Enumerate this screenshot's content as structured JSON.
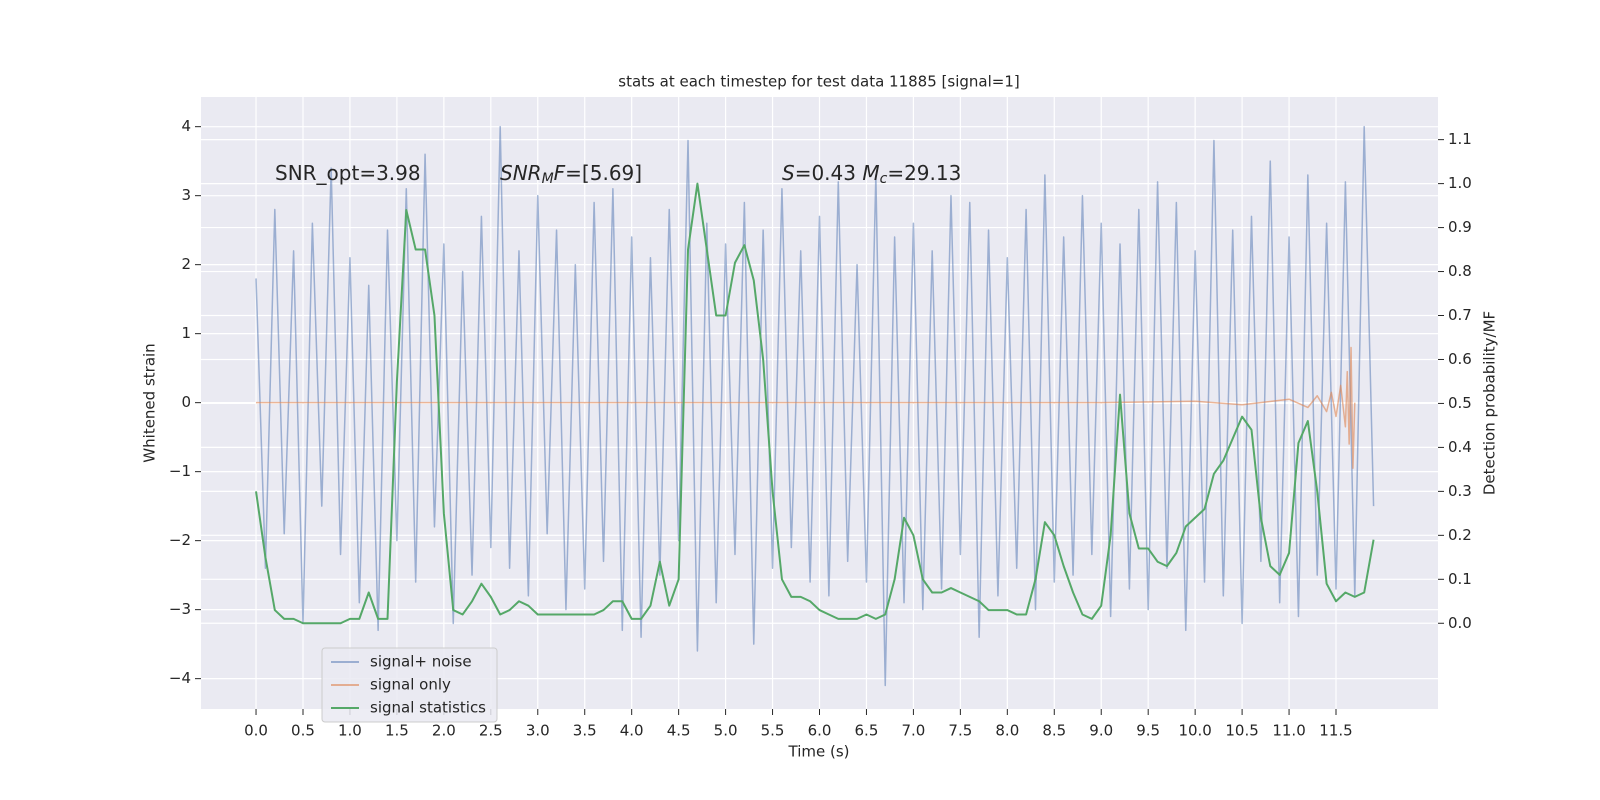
{
  "chart_data": {
    "type": "line",
    "title": "stats at each timestep for test data 11885 [signal=1]",
    "xlabel": "Time (s)",
    "ylabel": "Whitened strain",
    "y2label": "Detection probability/MF",
    "x": [
      0,
      0.1,
      0.2,
      0.3,
      0.4,
      0.5,
      0.6,
      0.7,
      0.8,
      0.9,
      1,
      1.1,
      1.2,
      1.3,
      1.4,
      1.5,
      1.6,
      1.7,
      1.8,
      1.9,
      2,
      2.1,
      2.2,
      2.3,
      2.4,
      2.5,
      2.6,
      2.7,
      2.8,
      2.9,
      3,
      3.1,
      3.2,
      3.3,
      3.4,
      3.5,
      3.6,
      3.7,
      3.8,
      3.9,
      4,
      4.1,
      4.2,
      4.3,
      4.4,
      4.5,
      4.6,
      4.7,
      4.8,
      4.9,
      5,
      5.1,
      5.2,
      5.3,
      5.4,
      5.5,
      5.6,
      5.7,
      5.8,
      5.9,
      6,
      6.1,
      6.2,
      6.3,
      6.4,
      6.5,
      6.6,
      6.7,
      6.8,
      6.9,
      7,
      7.1,
      7.2,
      7.3,
      7.4,
      7.5,
      7.6,
      7.7,
      7.8,
      7.9,
      8,
      8.1,
      8.2,
      8.3,
      8.4,
      8.5,
      8.6,
      8.7,
      8.8,
      8.9,
      9,
      9.1,
      9.2,
      9.3,
      9.4,
      9.5,
      9.6,
      9.7,
      9.8,
      9.9,
      10,
      10.1,
      10.2,
      10.3,
      10.4,
      10.5,
      10.6,
      10.7,
      10.8,
      10.9,
      11,
      11.1,
      11.2,
      11.3,
      11.4,
      11.5,
      11.6,
      11.7,
      11.8,
      11.9
    ],
    "series": [
      {
        "name": "signal+ noise",
        "color": "#4c72b0",
        "opacity": 0.5,
        "values": [
          1.8,
          -2.4,
          2.8,
          -1.9,
          2.2,
          -3.2,
          2.6,
          -1.5,
          3.4,
          -2.2,
          2.1,
          -2.9,
          1.7,
          -3.3,
          2.5,
          -2.0,
          3.1,
          -2.6,
          3.6,
          -1.8,
          2.3,
          -3.2,
          1.9,
          -2.5,
          2.7,
          -2.1,
          4.0,
          -2.4,
          2.2,
          -2.8,
          3.0,
          -1.9,
          2.5,
          -3.0,
          2.0,
          -2.7,
          2.9,
          -2.3,
          3.1,
          -3.3,
          2.4,
          -3.4,
          2.1,
          -2.5,
          2.8,
          -2.0,
          3.8,
          -3.6,
          2.6,
          -2.9,
          2.3,
          -2.2,
          2.9,
          -3.5,
          2.5,
          -2.4,
          3.1,
          -2.1,
          2.2,
          -2.6,
          2.7,
          -2.8,
          3.2,
          -2.3,
          2.0,
          -2.6,
          3.3,
          -4.1,
          2.4,
          -2.9,
          2.6,
          -3.0,
          2.2,
          -2.7,
          3.0,
          -2.2,
          2.9,
          -3.4,
          2.5,
          -2.8,
          2.1,
          -2.4,
          2.8,
          -3.0,
          3.3,
          -2.6,
          2.4,
          -2.5,
          3.0,
          -2.2,
          2.6,
          -3.1,
          2.3,
          -2.7,
          2.8,
          -3.0,
          3.2,
          -2.4,
          2.9,
          -3.3,
          2.2,
          -2.6,
          3.8,
          -2.8,
          2.5,
          -3.2,
          2.7,
          -2.3,
          3.5,
          -2.9,
          2.4,
          -3.1,
          3.3,
          -2.5,
          2.6,
          -2.7,
          3.2,
          -2.8,
          4.0,
          -1.5
        ]
      },
      {
        "name": "signal only",
        "color": "#dd8452",
        "opacity": 0.6,
        "x": [
          0,
          9.0,
          10.0,
          10.5,
          11.0,
          11.2,
          11.3,
          11.4,
          11.45,
          11.5,
          11.55,
          11.6,
          11.62,
          11.64,
          11.66,
          11.68,
          11.7
        ],
        "values": [
          0,
          0,
          0.02,
          -0.03,
          0.05,
          -0.07,
          0.1,
          -0.13,
          0.15,
          -0.2,
          0.25,
          -0.35,
          0.45,
          -0.6,
          0.8,
          -0.95,
          0
        ]
      },
      {
        "name": "signal statistics",
        "color": "#55a868",
        "opacity": 1,
        "axis": "y2",
        "values": [
          0.3,
          0.15,
          0.03,
          0.01,
          0.01,
          0.0,
          0.0,
          0.0,
          0.0,
          0.0,
          0.01,
          0.01,
          0.07,
          0.01,
          0.01,
          0.55,
          0.94,
          0.85,
          0.85,
          0.7,
          0.25,
          0.03,
          0.02,
          0.05,
          0.09,
          0.06,
          0.02,
          0.03,
          0.05,
          0.04,
          0.02,
          0.02,
          0.02,
          0.02,
          0.02,
          0.02,
          0.02,
          0.03,
          0.05,
          0.05,
          0.01,
          0.01,
          0.04,
          0.14,
          0.04,
          0.1,
          0.85,
          1.0,
          0.85,
          0.7,
          0.7,
          0.82,
          0.86,
          0.78,
          0.6,
          0.3,
          0.1,
          0.06,
          0.06,
          0.05,
          0.03,
          0.02,
          0.01,
          0.01,
          0.01,
          0.02,
          0.01,
          0.02,
          0.1,
          0.24,
          0.2,
          0.1,
          0.07,
          0.07,
          0.08,
          0.07,
          0.06,
          0.05,
          0.03,
          0.03,
          0.03,
          0.02,
          0.02,
          0.1,
          0.23,
          0.2,
          0.13,
          0.07,
          0.02,
          0.01,
          0.04,
          0.2,
          0.52,
          0.25,
          0.17,
          0.17,
          0.14,
          0.13,
          0.16,
          0.22,
          0.24,
          0.26,
          0.34,
          0.37,
          0.42,
          0.47,
          0.44,
          0.24,
          0.13,
          0.11,
          0.16,
          0.41,
          0.46,
          0.3,
          0.09,
          0.05,
          0.07,
          0.06,
          0.07,
          0.19
        ]
      }
    ],
    "annotations": [
      {
        "parts": [
          {
            "text": "SNR_opt=3.98"
          }
        ]
      },
      {
        "parts": [
          {
            "text": "SNR",
            "italic": true
          },
          {
            "text": "M",
            "italic": true,
            "sub": true
          },
          {
            "text": "F",
            "italic": true
          },
          {
            "text": "=[5.69]"
          }
        ]
      },
      {
        "parts": [
          {
            "text": "S",
            "italic": true
          },
          {
            "text": "=0.43   "
          },
          {
            "text": "M",
            "italic": true
          },
          {
            "text": "c",
            "italic": true,
            "sub": true
          },
          {
            "text": "=29.13"
          }
        ]
      }
    ],
    "xlim": [
      -0.586,
      12.586
    ],
    "xticks": [
      {
        "value": 0,
        "label": "0.0"
      },
      0.5,
      {
        "value": 1,
        "label": "1.0"
      },
      1.5,
      {
        "value": 2,
        "label": "2.0"
      },
      2.5,
      {
        "value": 3,
        "label": "3.0"
      },
      3.5,
      {
        "value": 4,
        "label": "4.0"
      },
      4.5,
      {
        "value": 5,
        "label": "5.0"
      },
      5.5,
      {
        "value": 6,
        "label": "6.0"
      },
      6.5,
      {
        "value": 7,
        "label": "7.0"
      },
      7.5,
      {
        "value": 8,
        "label": "8.0"
      },
      8.5,
      {
        "value": 9,
        "label": "9.0"
      },
      9.5,
      {
        "value": 10,
        "label": "10.0"
      },
      10.5,
      {
        "value": 11,
        "label": "11.0"
      },
      11.5
    ],
    "ylim": [
      -4.44,
      4.43
    ],
    "yticks": [
      {
        "value": -4,
        "label": "−4"
      },
      {
        "value": -3,
        "label": "−3"
      },
      {
        "value": -2,
        "label": "−2"
      },
      {
        "value": -1,
        "label": "−1"
      },
      0,
      1,
      2,
      3,
      4
    ],
    "y2lim": [
      -0.195,
      1.197
    ],
    "y2ticks": [
      {
        "value": 0,
        "label": "0.0"
      },
      0.1,
      0.2,
      0.3,
      0.4,
      0.5,
      0.6,
      0.7,
      0.8,
      0.9,
      {
        "value": 1,
        "label": "1.0"
      },
      1.1
    ],
    "grid": true,
    "legend": "lower left"
  }
}
